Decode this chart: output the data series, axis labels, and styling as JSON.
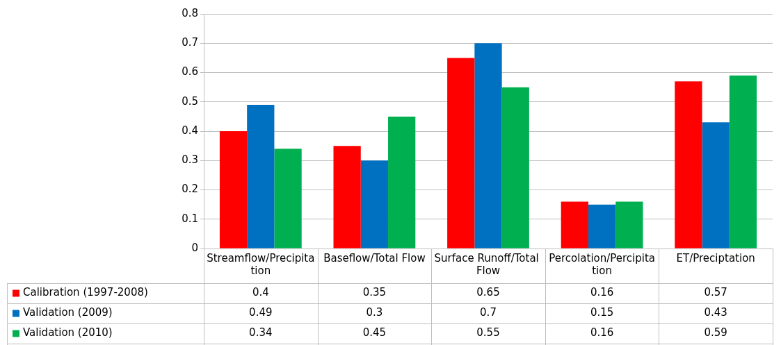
{
  "chart_data": {
    "type": "bar",
    "categories": [
      "Streamflow/Precipitation",
      "Baseflow/Total Flow",
      "Surface Runoff/Total Flow",
      "Percolation/Percipitation",
      "ET/Preciptation"
    ],
    "series": [
      {
        "name": "Calibration (1997-2008)",
        "color": "#ff0000",
        "values": [
          0.4,
          0.35,
          0.65,
          0.16,
          0.57
        ]
      },
      {
        "name": "Validation (2009)",
        "color": "#0070c0",
        "values": [
          0.49,
          0.3,
          0.7,
          0.15,
          0.43
        ]
      },
      {
        "name": "Validation (2010)",
        "color": "#00b050",
        "values": [
          0.34,
          0.45,
          0.55,
          0.16,
          0.59
        ]
      }
    ],
    "ylim": [
      0,
      0.8
    ],
    "yticks": [
      0,
      0.1,
      0.2,
      0.3,
      0.4,
      0.5,
      0.6,
      0.7,
      0.8
    ],
    "grid": "y",
    "legend": "bottom left",
    "data_labels": true
  }
}
